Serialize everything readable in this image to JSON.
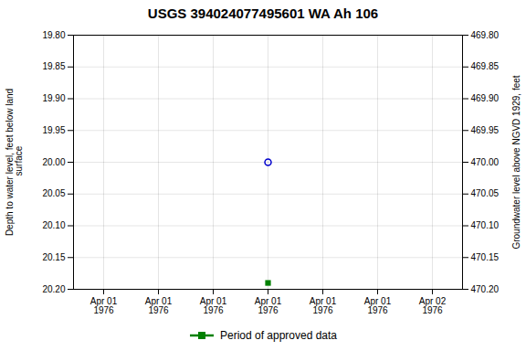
{
  "chart_data": {
    "type": "scatter",
    "title": "USGS 394024077495601 WA Ah 106",
    "y_label": "Depth to water level, feet below land\n surface",
    "y2_label": "Groundwater level above NGVD 1929, feet",
    "categories": [
      "Apr 01\n1976",
      "Apr 01\n1976",
      "Apr 01\n1976",
      "Apr 01\n1976",
      "Apr 01\n1976",
      "Apr 01\n1976",
      "Apr 02\n1976"
    ],
    "series": [
      {
        "color": "#0000cc",
        "marker": "open_circle",
        "values": [
          null,
          null,
          null,
          20.0,
          null,
          null,
          null
        ]
      },
      {
        "name": "Period of approved data",
        "color": "#008000",
        "marker": "square",
        "values": [
          null,
          null,
          null,
          20.19,
          null,
          null,
          null
        ]
      }
    ],
    "ylim": [
      20.2,
      19.8
    ],
    "yticks": [
      {
        "value": 19.8,
        "label": "19.80"
      },
      {
        "value": 19.85,
        "label": "19.85"
      },
      {
        "value": 19.9,
        "label": "19.90"
      },
      {
        "value": 19.95,
        "label": "19.95"
      },
      {
        "value": 20.0,
        "label": "20.00"
      },
      {
        "value": 20.05,
        "label": "20.05"
      },
      {
        "value": 20.1,
        "label": "20.10"
      },
      {
        "value": 20.15,
        "label": "20.15"
      },
      {
        "value": 20.2,
        "label": "20.20"
      }
    ],
    "y2lim": [
      470.2,
      469.8
    ],
    "y2ticks": [
      {
        "value": 470.2,
        "label": "470.20"
      },
      {
        "value": 470.15,
        "label": "470.15"
      },
      {
        "value": 470.1,
        "label": "470.10"
      },
      {
        "value": 470.05,
        "label": "470.05"
      },
      {
        "value": 470.0,
        "label": "470.00"
      },
      {
        "value": 469.95,
        "label": "469.95"
      },
      {
        "value": 469.9,
        "label": "469.90"
      },
      {
        "value": 469.85,
        "label": "469.85"
      },
      {
        "value": 469.8,
        "label": "469.80"
      }
    ],
    "grid": true,
    "legend": "bottom"
  }
}
